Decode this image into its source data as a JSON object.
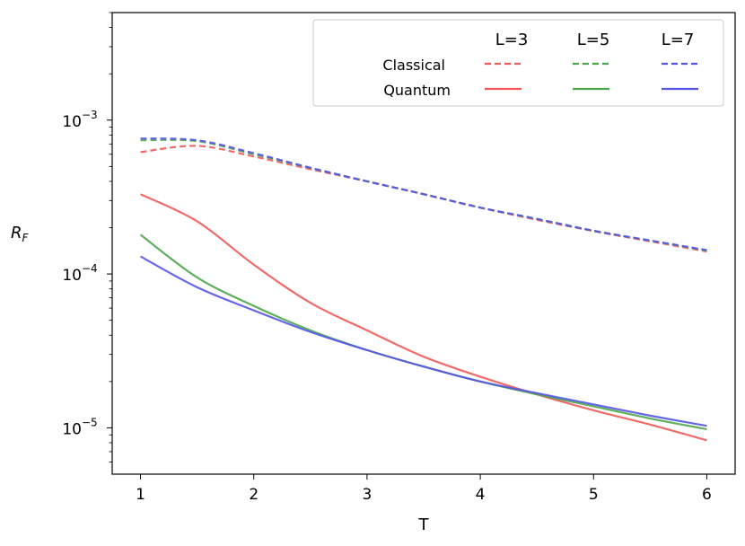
{
  "chart_data": {
    "type": "line",
    "xlabel": "T",
    "ylabel": "R_F",
    "y_scale": "log",
    "xlim": [
      0.75,
      6.25
    ],
    "ylim": [
      5e-06,
      0.005
    ],
    "x_ticks": [
      1,
      2,
      3,
      4,
      5,
      6
    ],
    "x_tick_labels": [
      "1",
      "2",
      "3",
      "4",
      "5",
      "6"
    ],
    "y_ticks": [
      1e-05,
      0.0001,
      0.001
    ],
    "y_tick_labels": [
      {
        "base": "10",
        "exp": "−5"
      },
      {
        "base": "10",
        "exp": "−4"
      },
      {
        "base": "10",
        "exp": "−3"
      }
    ],
    "legend": {
      "placement": "top-right",
      "columns": [
        "L=3",
        "L=5",
        "L=7"
      ],
      "rows": [
        "Classical",
        "Quantum"
      ]
    },
    "x": [
      1.0,
      1.5,
      2.0,
      2.5,
      3.0,
      3.5,
      4.0,
      4.5,
      5.0,
      5.5,
      6.0
    ],
    "series": [
      {
        "name": "Classical",
        "L": "L=3",
        "style": "dashed",
        "color": "#f05a5a",
        "values": [
          0.00062,
          0.00068,
          0.00058,
          0.00048,
          0.0004,
          0.00033,
          0.00027,
          0.000225,
          0.00019,
          0.000163,
          0.00014
        ]
      },
      {
        "name": "Classical",
        "L": "L=5",
        "style": "dashed",
        "color": "#4ca64c",
        "values": [
          0.00074,
          0.00073,
          0.0006,
          0.00049,
          0.0004,
          0.00033,
          0.00027,
          0.000228,
          0.000191,
          0.000165,
          0.000142
        ]
      },
      {
        "name": "Classical",
        "L": "L=7",
        "style": "dashed",
        "color": "#5555e8",
        "values": [
          0.00076,
          0.00074,
          0.00061,
          0.00049,
          0.0004,
          0.00033,
          0.00027,
          0.000228,
          0.000191,
          0.000165,
          0.000143
        ]
      },
      {
        "name": "Quantum",
        "L": "L=3",
        "style": "solid",
        "color": "#f05a5a",
        "values": [
          0.00033,
          0.00022,
          0.000115,
          6.5e-05,
          4.3e-05,
          2.9e-05,
          2.15e-05,
          1.65e-05,
          1.3e-05,
          1.05e-05,
          8.3e-06
        ]
      },
      {
        "name": "Quantum",
        "L": "L=5",
        "style": "solid",
        "color": "#4ca64c",
        "values": [
          0.00018,
          9.5e-05,
          6.2e-05,
          4.3e-05,
          3.2e-05,
          2.5e-05,
          2e-05,
          1.65e-05,
          1.38e-05,
          1.15e-05,
          9.8e-06
        ]
      },
      {
        "name": "Quantum",
        "L": "L=7",
        "style": "solid",
        "color": "#5555e8",
        "values": [
          0.00013,
          8.2e-05,
          5.8e-05,
          4.2e-05,
          3.2e-05,
          2.5e-05,
          2e-05,
          1.68e-05,
          1.42e-05,
          1.2e-05,
          1.03e-05
        ]
      }
    ]
  }
}
